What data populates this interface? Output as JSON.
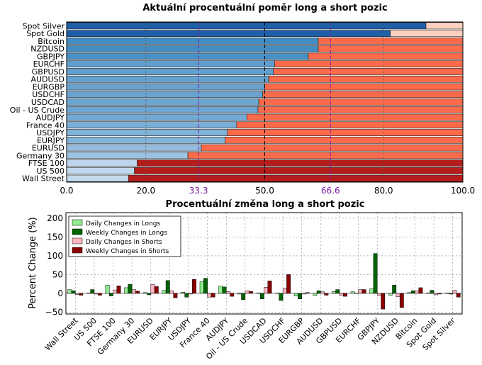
{
  "chart_data": [
    {
      "type": "bar",
      "orientation": "horizontal-stacked",
      "title": "Aktuální procentuální poměr long a short pozic",
      "categories": [
        "Spot Silver",
        "Spot Gold",
        "Bitcoin",
        "NZDUSD",
        "GBPJPY",
        "EURCHF",
        "GBPUSD",
        "AUDUSD",
        "EURGBP",
        "USDCHF",
        "USDCAD",
        "Oil - US Crude",
        "AUDJPY",
        "France 40",
        "USDJPY",
        "EURJPY",
        "EURUSD",
        "Germany 30",
        "FTSE 100",
        "US 500",
        "Wall Street"
      ],
      "series": [
        {
          "name": "long",
          "values": [
            90.7,
            81.7,
            63.5,
            63.5,
            61.0,
            52.5,
            52.2,
            51.0,
            50.0,
            49.5,
            48.5,
            48.3,
            45.5,
            42.9,
            40.6,
            40.0,
            34.0,
            30.6,
            17.8,
            17.1,
            15.6
          ]
        },
        {
          "name": "short",
          "values": [
            9.3,
            18.3,
            36.5,
            36.5,
            39.0,
            47.5,
            47.8,
            49.0,
            50.0,
            50.5,
            51.5,
            51.7,
            54.5,
            57.1,
            59.4,
            60.0,
            66.0,
            69.4,
            82.2,
            82.9,
            84.4
          ]
        }
      ],
      "xlim": [
        0,
        100
      ],
      "xticks": [
        "0.0",
        "20.0",
        "50.0",
        "80.0",
        "100.0"
      ],
      "special_ticks": [
        "33.3",
        "66.6"
      ],
      "special_tick_values": [
        33.3,
        66.6
      ],
      "grid": true,
      "colors": {
        "long_strong": "#1f5fa8",
        "long_light": "#c6dbef",
        "short_light": "#fdd0c2",
        "short_strong": "#b51c1c",
        "special_tick": "#7b1fa2",
        "special_line": "#7b1fa2"
      }
    },
    {
      "type": "bar",
      "title": "Procentuální změna long a short pozic",
      "ylabel": "Percent Change (%)",
      "categories": [
        "Wall Street",
        "US 500",
        "FTSE 100",
        "Germany 30",
        "EURUSD",
        "EURJPY",
        "USDJPY",
        "France 40",
        "AUDJPY",
        "Oil - US Crude",
        "USDCAD",
        "USDCHF",
        "EURGBP",
        "AUDUSD",
        "GBPUSD",
        "EURCHF",
        "GBPJPY",
        "NZDUSD",
        "Bitcoin",
        "Spot Gold",
        "Spot Silver"
      ],
      "series": [
        {
          "name": "Daily Changes in Longs",
          "values": [
            10,
            1,
            22,
            15,
            2,
            8,
            3,
            31,
            19,
            -2,
            1,
            1,
            -7,
            -6,
            5,
            4,
            12,
            -5,
            2,
            1,
            1
          ],
          "color": "#90ee90"
        },
        {
          "name": "Weekly Changes in Longs",
          "values": [
            7,
            10,
            -7,
            24,
            -4,
            34,
            -10,
            40,
            17,
            -17,
            -15,
            -19,
            -15,
            7,
            10,
            1,
            106,
            22,
            7,
            8,
            -2
          ],
          "color": "#006400"
        },
        {
          "name": "Daily Changes in Shorts",
          "values": [
            -3,
            -2,
            9,
            10,
            24,
            7,
            -2,
            -10,
            5,
            7,
            16,
            13,
            -2,
            4,
            -5,
            10,
            -5,
            -9,
            7,
            -4,
            8
          ],
          "color": "#ffb6c1"
        },
        {
          "name": "Weekly Changes in Shorts",
          "values": [
            -5,
            -5,
            20,
            6,
            18,
            -12,
            37,
            -10,
            -8,
            5,
            33,
            50,
            2,
            -5,
            -8,
            10,
            -42,
            -38,
            15,
            -2,
            -10
          ],
          "color": "#8b0000"
        }
      ],
      "ylim": [
        -55,
        215
      ],
      "yticks": [
        "200",
        "150",
        "100",
        "50",
        "0",
        "−50"
      ],
      "ytick_values": [
        200,
        150,
        100,
        50,
        0,
        -50
      ],
      "grid": true,
      "legend_position": "top-left"
    }
  ]
}
